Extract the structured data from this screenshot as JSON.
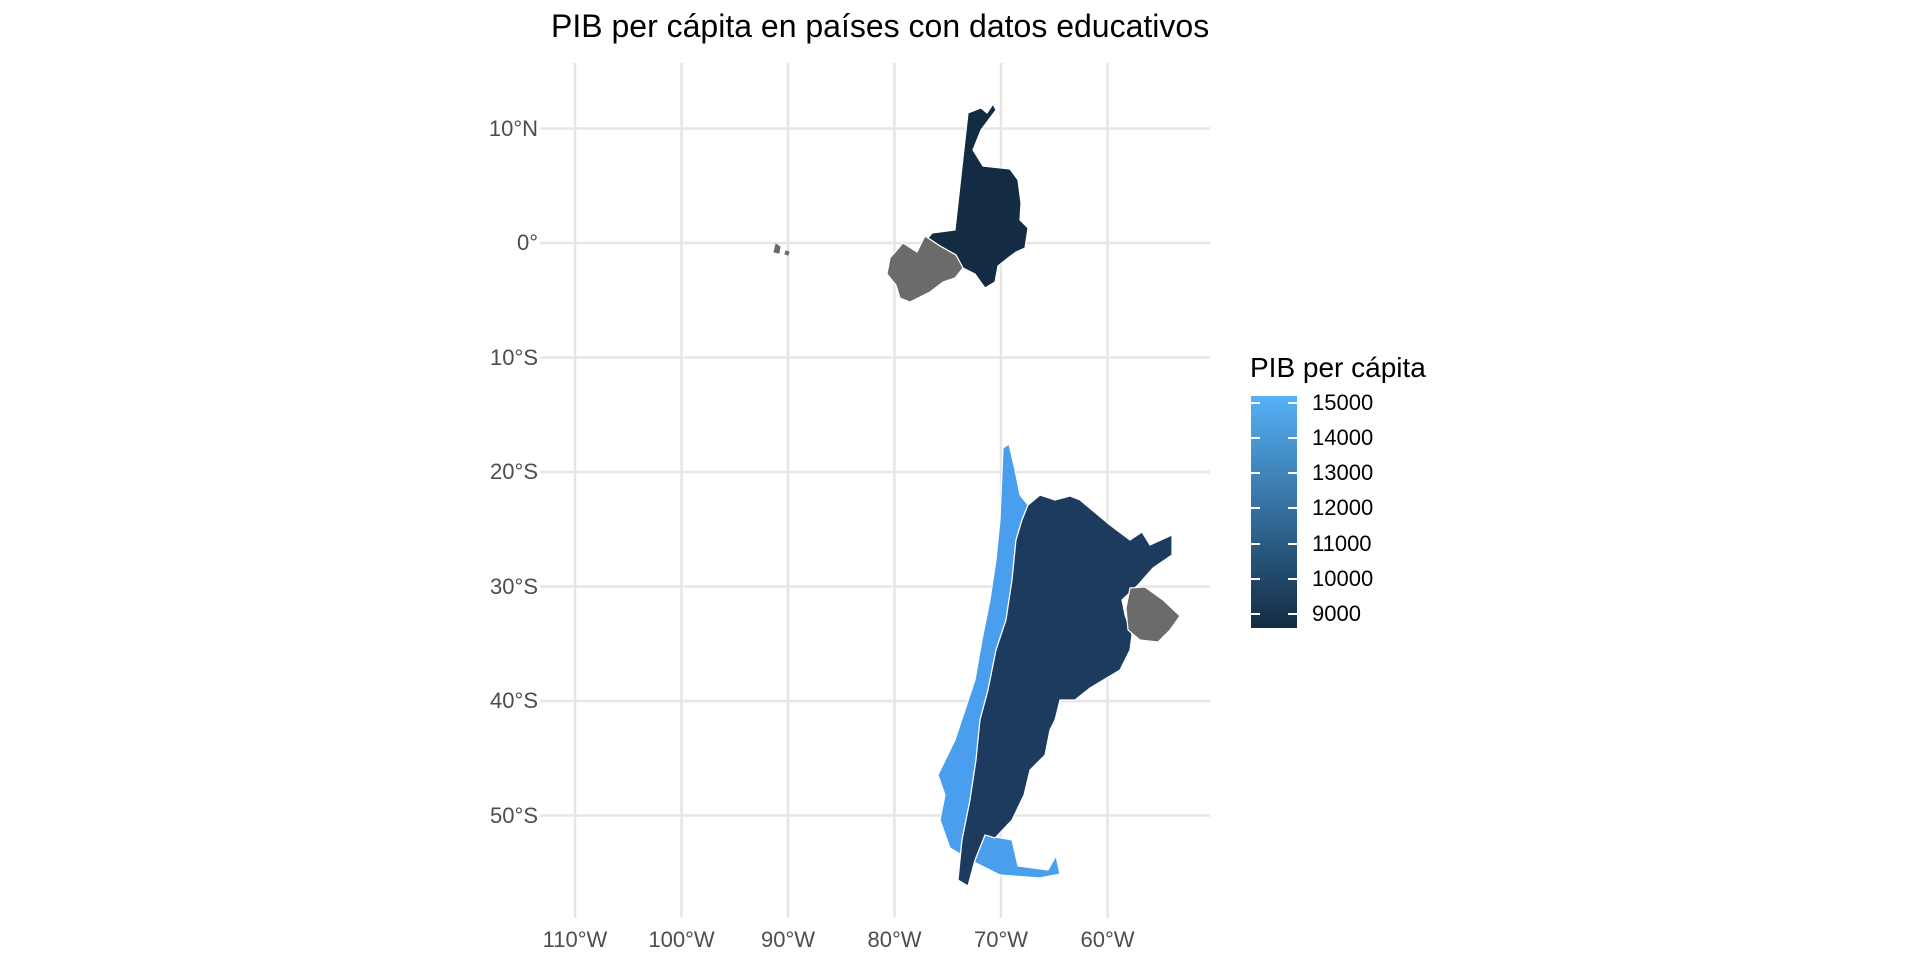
{
  "title": "PIB per cápita en países con datos educativos",
  "map": {
    "projection": "longitude-latitude",
    "xlim": [
      -112,
      -52
    ],
    "ylim": [
      -58,
      16
    ],
    "grid": true,
    "lat_ticks": [
      {
        "value": 10,
        "label": "10°N"
      },
      {
        "value": 0,
        "label": "0°"
      },
      {
        "value": -10,
        "label": "10°S"
      },
      {
        "value": -20,
        "label": "20°S"
      },
      {
        "value": -30,
        "label": "30°S"
      },
      {
        "value": -40,
        "label": "40°S"
      },
      {
        "value": -50,
        "label": "50°S"
      }
    ],
    "lon_ticks": [
      {
        "value": -110,
        "label": "110°W"
      },
      {
        "value": -100,
        "label": "100°W"
      },
      {
        "value": -90,
        "label": "90°W"
      },
      {
        "value": -80,
        "label": "80°W"
      },
      {
        "value": -70,
        "label": "70°W"
      },
      {
        "value": -60,
        "label": "60°W"
      }
    ],
    "regions": [
      {
        "id": "colombia",
        "gdp_per_capita": 8800,
        "fill": "#132B43"
      },
      {
        "id": "ecuador",
        "gdp_per_capita": null,
        "fill": "#6B6B6B"
      },
      {
        "id": "galapagos",
        "gdp_per_capita": null,
        "fill": "#6B6B6B"
      },
      {
        "id": "chile",
        "gdp_per_capita": 15000,
        "fill": "#4A9EEE"
      },
      {
        "id": "argentina",
        "gdp_per_capita": 10500,
        "fill": "#1D3B5E"
      },
      {
        "id": "uruguay",
        "gdp_per_capita": null,
        "fill": "#6B6B6B"
      }
    ]
  },
  "legend": {
    "title": "PIB per cápita",
    "low_color": "#132B43",
    "high_color": "#56B1F7",
    "range": [
      8600,
      15200
    ],
    "ticks": [
      {
        "value": 15000,
        "label": "15000"
      },
      {
        "value": 14000,
        "label": "14000"
      },
      {
        "value": 13000,
        "label": "13000"
      },
      {
        "value": 12000,
        "label": "12000"
      },
      {
        "value": 11000,
        "label": "11000"
      },
      {
        "value": 10000,
        "label": "10000"
      },
      {
        "value": 9000,
        "label": "9000"
      }
    ]
  }
}
